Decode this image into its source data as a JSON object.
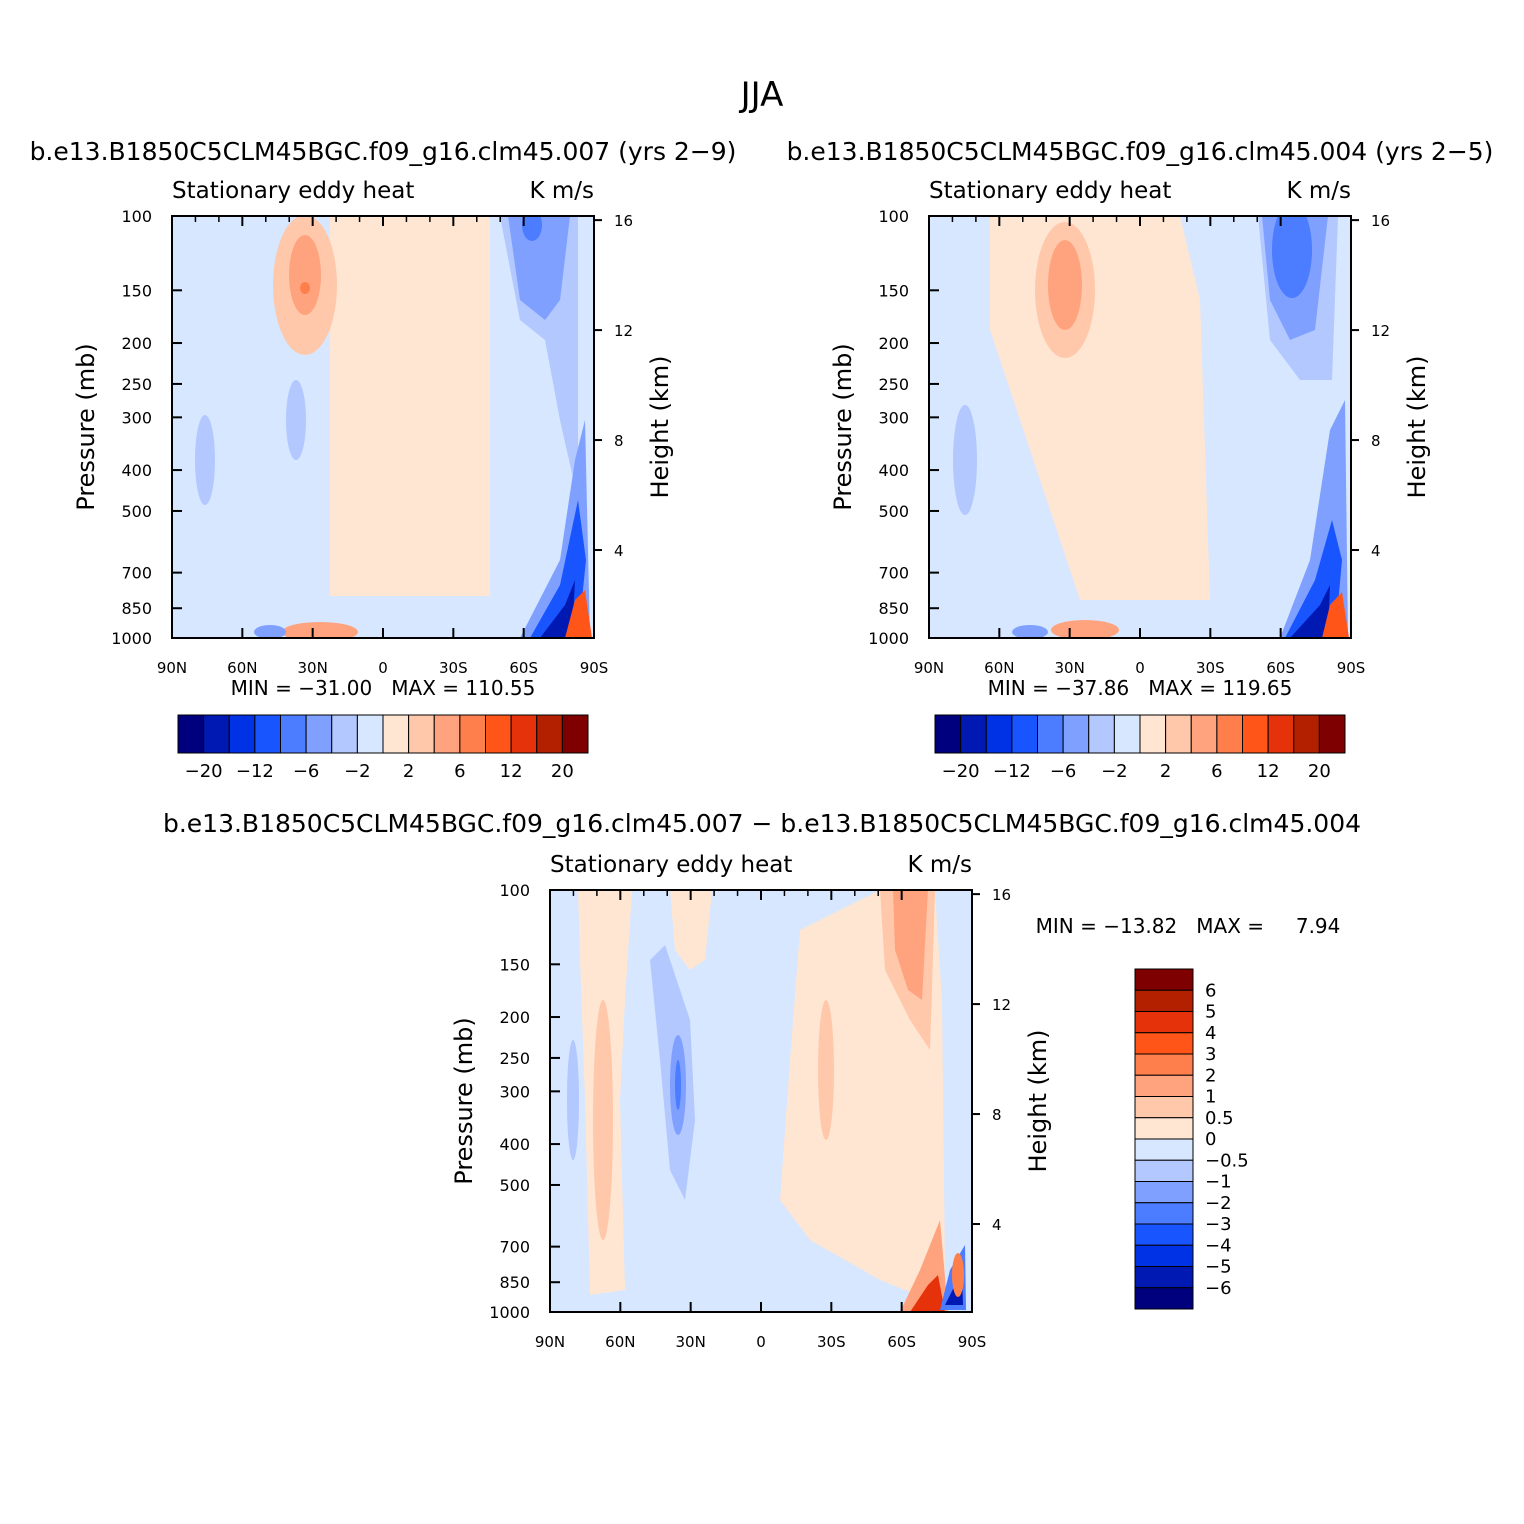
{
  "page_title": "JJA",
  "colors": {
    "blue_scale": [
      "#00007f",
      "#0019b2",
      "#0032e5",
      "#1955ff",
      "#4c7cff",
      "#7fa0ff",
      "#b2c8ff",
      "#d6e7ff"
    ],
    "red_scale": [
      "#ffe6d2",
      "#ffc8ab",
      "#ffa37f",
      "#ff7f4c",
      "#ff5519",
      "#e5320a",
      "#b22000",
      "#7f0000"
    ]
  },
  "chart_data": [
    {
      "type": "contour",
      "id": "panel1",
      "title": "b.e13.B1850C5CLM45BGC.f09_g16.clm45.007 (yrs 2−9)",
      "left_label": "Stationary eddy heat",
      "right_label": "K m/s",
      "ylabel": "Pressure (mb)",
      "ylabel_right": "Height (km)",
      "x_ticks": [
        "90N",
        "60N",
        "30N",
        "0",
        "30S",
        "60S",
        "90S"
      ],
      "y_ticks": [
        "100",
        "150",
        "200",
        "250",
        "300",
        "400",
        "500",
        "700",
        "850",
        "1000"
      ],
      "y_ticks_right": [
        "16",
        "12",
        "8",
        "4"
      ],
      "stats": "MIN = −31.00   MAX = 110.55",
      "min": -31.0,
      "max": 110.55,
      "colorbar_levels": [
        -20,
        -16,
        -12,
        -8,
        -6,
        -4,
        -2,
        0,
        2,
        4,
        6,
        8,
        12,
        16,
        20
      ],
      "colorbar_labels": [
        "−20",
        "−12",
        "−6",
        "−2",
        "2",
        "6",
        "12",
        "20"
      ]
    },
    {
      "type": "contour",
      "id": "panel2",
      "title": "b.e13.B1850C5CLM45BGC.f09_g16.clm45.004 (yrs 2−5)",
      "left_label": "Stationary eddy heat",
      "right_label": "K m/s",
      "ylabel": "Pressure (mb)",
      "ylabel_right": "Height (km)",
      "x_ticks": [
        "90N",
        "60N",
        "30N",
        "0",
        "30S",
        "60S",
        "90S"
      ],
      "y_ticks": [
        "100",
        "150",
        "200",
        "250",
        "300",
        "400",
        "500",
        "700",
        "850",
        "1000"
      ],
      "y_ticks_right": [
        "16",
        "12",
        "8",
        "4"
      ],
      "stats": "MIN = −37.86   MAX = 119.65",
      "min": -37.86,
      "max": 119.65,
      "colorbar_levels": [
        -20,
        -16,
        -12,
        -8,
        -6,
        -4,
        -2,
        0,
        2,
        4,
        6,
        8,
        12,
        16,
        20
      ],
      "colorbar_labels": [
        "−20",
        "−12",
        "−6",
        "−2",
        "2",
        "6",
        "12",
        "20"
      ]
    },
    {
      "type": "contour",
      "id": "panel3",
      "title": "b.e13.B1850C5CLM45BGC.f09_g16.clm45.007 − b.e13.B1850C5CLM45BGC.f09_g16.clm45.004",
      "left_label": "Stationary eddy heat",
      "right_label": "K m/s",
      "ylabel": "Pressure (mb)",
      "ylabel_right": "Height (km)",
      "x_ticks": [
        "90N",
        "60N",
        "30N",
        "0",
        "30S",
        "60S",
        "90S"
      ],
      "y_ticks": [
        "100",
        "150",
        "200",
        "250",
        "300",
        "400",
        "500",
        "700",
        "850",
        "1000"
      ],
      "y_ticks_right": [
        "16",
        "12",
        "8",
        "4"
      ],
      "stats": "MIN = −13.82   MAX =     7.94",
      "min": -13.82,
      "max": 7.94,
      "colorbar_levels": [
        -6,
        -5,
        -4,
        -3,
        -2,
        -1,
        -0.5,
        0,
        0.5,
        1,
        2,
        3,
        4,
        5,
        6
      ],
      "colorbar_labels": [
        "6",
        "5",
        "4",
        "3",
        "2",
        "1",
        "0.5",
        "0",
        "−0.5",
        "−1",
        "−2",
        "−3",
        "−4",
        "−5",
        "−6"
      ]
    }
  ]
}
